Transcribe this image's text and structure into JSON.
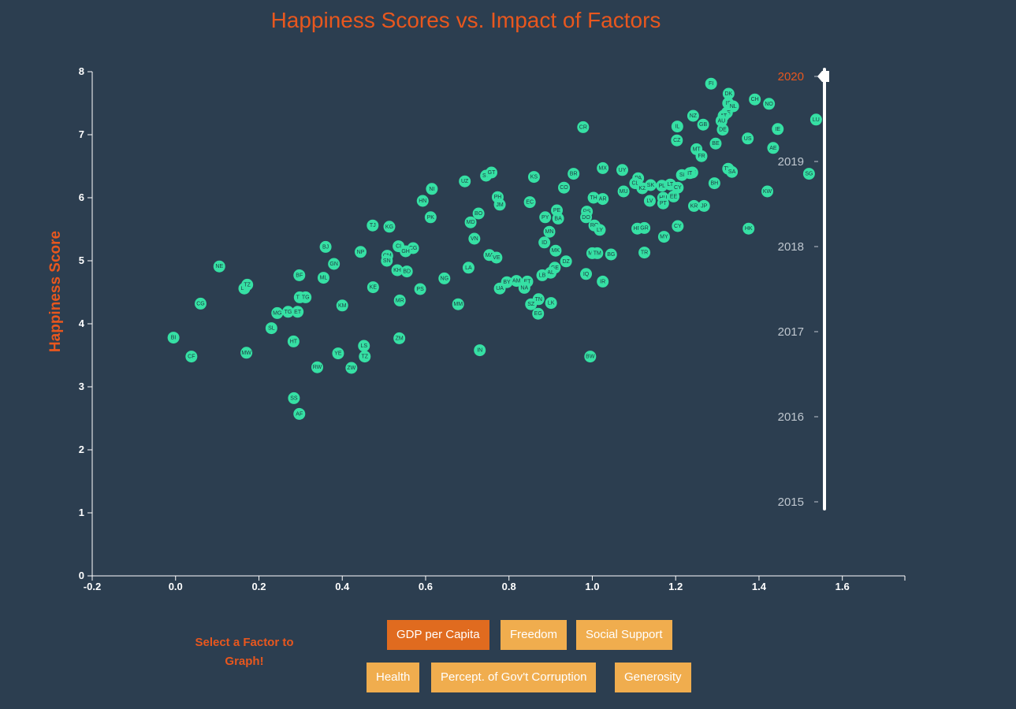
{
  "title": "Happiness Scores vs. Impact of Factors",
  "factor_prompt": "Select a Factor to Graph!",
  "buttons": {
    "gdp": "GDP per Capita",
    "freedom": "Freedom",
    "social": "Social Support",
    "health": "Health",
    "corruption": "Percept. of Gov't Corruption",
    "generosity": "Generosity"
  },
  "active_factor": "GDP per Capita",
  "slider": {
    "years": [
      "2020",
      "2019",
      "2018",
      "2017",
      "2016",
      "2015"
    ],
    "selected": "2020"
  },
  "colors": {
    "background": "#2c3e50",
    "accent": "#e8571e",
    "dot": "#36e0a4",
    "button": "#f0ad4e",
    "button_active": "#e06b1f"
  },
  "chart_data": {
    "type": "scatter",
    "title": "Happiness Scores vs. Impact of Factors",
    "xlabel": "",
    "ylabel": "Happiness Score",
    "xlim": [
      -0.2,
      1.75
    ],
    "ylim": [
      0,
      8
    ],
    "xticks": [
      -0.2,
      0.0,
      0.2,
      0.4,
      0.6,
      0.8,
      1.0,
      1.2,
      1.4,
      1.6
    ],
    "yticks": [
      0,
      1,
      2,
      3,
      4,
      5,
      6,
      7,
      8
    ],
    "grid": false,
    "points": [
      [
        "FI",
        1.285,
        7.81
      ],
      [
        "DK",
        1.327,
        7.65
      ],
      [
        "IS",
        1.326,
        7.5
      ],
      [
        "NL",
        1.338,
        7.45
      ],
      [
        "CH",
        1.39,
        7.56
      ],
      [
        "NO",
        1.424,
        7.49
      ],
      [
        "SE",
        1.323,
        7.35
      ],
      [
        "AT",
        1.315,
        7.3
      ],
      [
        "NZ",
        1.242,
        7.3
      ],
      [
        "LU",
        1.537,
        7.24
      ],
      [
        "AU",
        1.31,
        7.22
      ],
      [
        "IL",
        1.204,
        7.13
      ],
      [
        "GB",
        1.266,
        7.16
      ],
      [
        "DE",
        1.313,
        7.08
      ],
      [
        "IE",
        1.445,
        7.09
      ],
      [
        "CR",
        0.978,
        7.12
      ],
      [
        "US",
        1.373,
        6.94
      ],
      [
        "CZ",
        1.203,
        6.91
      ],
      [
        "BE",
        1.296,
        6.86
      ],
      [
        "MT",
        1.25,
        6.77
      ],
      [
        "AE",
        1.434,
        6.79
      ],
      [
        "FR",
        1.262,
        6.66
      ],
      [
        "MX",
        1.025,
        6.47
      ],
      [
        "TW",
        1.326,
        6.46
      ],
      [
        "UY",
        1.072,
        6.44
      ],
      [
        "SA",
        1.335,
        6.41
      ],
      [
        "ES",
        1.24,
        6.4
      ],
      [
        "SG",
        1.52,
        6.38
      ],
      [
        "SI",
        1.215,
        6.36
      ],
      [
        "IT",
        1.234,
        6.39
      ],
      [
        "SV",
        0.745,
        6.35
      ],
      [
        "GT",
        0.758,
        6.4
      ],
      [
        "BR",
        0.955,
        6.38
      ],
      [
        "KS",
        0.86,
        6.33
      ],
      [
        "PA",
        1.11,
        6.31
      ],
      [
        "CL",
        1.103,
        6.23
      ],
      [
        "UZ",
        0.694,
        6.26
      ],
      [
        "BH",
        1.293,
        6.23
      ],
      [
        "CO",
        0.932,
        6.16
      ],
      [
        "NI",
        0.615,
        6.14
      ],
      [
        "KZ",
        1.12,
        6.15
      ],
      [
        "PL",
        1.167,
        6.19
      ],
      [
        "LT",
        1.187,
        6.21
      ],
      [
        "SK",
        1.14,
        6.2
      ],
      [
        "CY",
        1.205,
        6.16
      ],
      [
        "KW",
        1.42,
        6.1
      ],
      [
        "MU",
        1.075,
        6.1
      ],
      [
        "TH",
        1.003,
        6.0
      ],
      [
        "EE",
        1.195,
        6.02
      ],
      [
        "AR",
        1.025,
        5.98
      ],
      [
        "HU",
        1.17,
        6.0
      ],
      [
        "PH",
        0.773,
        6.01
      ],
      [
        "HN",
        0.593,
        5.95
      ],
      [
        "LV",
        1.138,
        5.95
      ],
      [
        "EC",
        0.85,
        5.93
      ],
      [
        "PT",
        1.17,
        5.91
      ],
      [
        "JM",
        0.778,
        5.89
      ],
      [
        "KR",
        1.244,
        5.87
      ],
      [
        "JP",
        1.268,
        5.87
      ],
      [
        "PE",
        0.915,
        5.8
      ],
      [
        "BO",
        0.727,
        5.75
      ],
      [
        "RS",
        0.987,
        5.78
      ],
      [
        "PY",
        0.887,
        5.69
      ],
      [
        "BA",
        0.918,
        5.67
      ],
      [
        "DO",
        0.985,
        5.69
      ],
      [
        "PK",
        0.612,
        5.69
      ],
      [
        "MD",
        0.708,
        5.61
      ],
      [
        "TJ",
        0.473,
        5.56
      ],
      [
        "KG",
        0.513,
        5.54
      ],
      [
        "RO",
        1.005,
        5.56
      ],
      [
        "LY",
        1.018,
        5.49
      ],
      [
        "CY",
        1.205,
        5.55
      ],
      [
        "HR",
        1.108,
        5.51
      ],
      [
        "GR",
        1.125,
        5.52
      ],
      [
        "HK",
        1.375,
        5.51
      ],
      [
        "MN",
        0.897,
        5.46
      ],
      [
        "MY",
        1.172,
        5.38
      ],
      [
        "VN",
        0.717,
        5.35
      ],
      [
        "ID",
        0.885,
        5.29
      ],
      [
        "BJ",
        0.36,
        5.22
      ],
      [
        "CI",
        0.535,
        5.23
      ],
      [
        "CG",
        0.57,
        5.2
      ],
      [
        "GH",
        0.552,
        5.15
      ],
      [
        "NP",
        0.444,
        5.14
      ],
      [
        "MK",
        0.912,
        5.16
      ],
      [
        "ME",
        1.0,
        5.12
      ],
      [
        "TM",
        1.012,
        5.12
      ],
      [
        "TR",
        1.125,
        5.13
      ],
      [
        "BG",
        1.045,
        5.1
      ],
      [
        "MA",
        0.753,
        5.09
      ],
      [
        "VE",
        0.77,
        5.05
      ],
      [
        "CM",
        0.508,
        5.08
      ],
      [
        "DZ",
        0.937,
        4.99
      ],
      [
        "SN",
        0.507,
        5.0
      ],
      [
        "GN",
        0.38,
        4.95
      ],
      [
        "LA",
        0.703,
        4.89
      ],
      [
        "GE",
        0.91,
        4.89
      ],
      [
        "KH",
        0.532,
        4.85
      ],
      [
        "BD",
        0.555,
        4.83
      ],
      [
        "AL",
        0.9,
        4.81
      ],
      [
        "BF",
        0.297,
        4.77
      ],
      [
        "IQ",
        0.985,
        4.79
      ],
      [
        "ML",
        0.355,
        4.73
      ],
      [
        "NG",
        0.645,
        4.72
      ],
      [
        "LB",
        0.88,
        4.77
      ],
      [
        "IR",
        1.025,
        4.67
      ],
      [
        "AM",
        0.818,
        4.68
      ],
      [
        "BY",
        0.795,
        4.66
      ],
      [
        "ET",
        0.844,
        4.67
      ],
      [
        "UA",
        0.778,
        4.56
      ],
      [
        "NA",
        0.837,
        4.57
      ],
      [
        "KE",
        0.474,
        4.58
      ],
      [
        "NE",
        0.105,
        4.91
      ],
      [
        "LR",
        0.165,
        4.56
      ],
      [
        "TZ",
        0.172,
        4.62
      ],
      [
        "PS",
        0.587,
        4.55
      ],
      [
        "TD",
        0.298,
        4.42
      ],
      [
        "TG",
        0.312,
        4.42
      ],
      [
        "MR",
        0.538,
        4.37
      ],
      [
        "TN",
        0.871,
        4.39
      ],
      [
        "LK",
        0.901,
        4.33
      ],
      [
        "MM",
        0.678,
        4.31
      ],
      [
        "KM",
        0.4,
        4.29
      ],
      [
        "SZ",
        0.853,
        4.31
      ],
      [
        "CG",
        0.06,
        4.32
      ],
      [
        "MG",
        0.244,
        4.17
      ],
      [
        "TG",
        0.27,
        4.19
      ],
      [
        "ET",
        0.293,
        4.19
      ],
      [
        "EG",
        0.87,
        4.16
      ],
      [
        "SL",
        0.23,
        3.93
      ],
      [
        "HT",
        0.283,
        3.72
      ],
      [
        "BI",
        -0.005,
        3.78
      ],
      [
        "LS",
        0.452,
        3.65
      ],
      [
        "ZM",
        0.537,
        3.77
      ],
      [
        "IN",
        0.73,
        3.58
      ],
      [
        "CF",
        0.038,
        3.48
      ],
      [
        "MW",
        0.17,
        3.54
      ],
      [
        "YE",
        0.39,
        3.53
      ],
      [
        "TZ",
        0.454,
        3.48
      ],
      [
        "BW",
        0.995,
        3.48
      ],
      [
        "RW",
        0.34,
        3.31
      ],
      [
        "ZW",
        0.422,
        3.3
      ],
      [
        "SS",
        0.284,
        2.82
      ],
      [
        "AF",
        0.297,
        2.57
      ]
    ]
  }
}
